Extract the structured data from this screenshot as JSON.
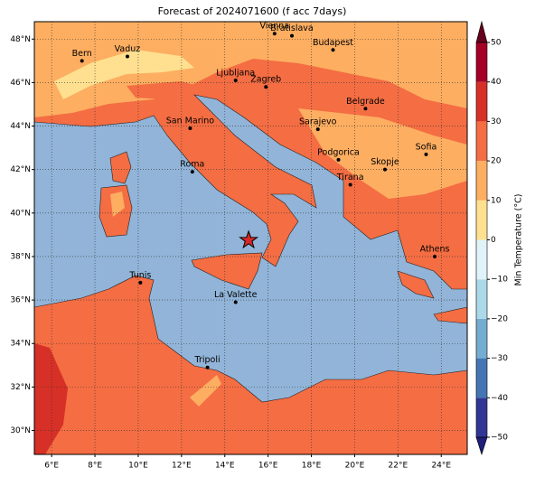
{
  "map": {
    "title": "Forecast of 2024071600 (f acc 7days)",
    "xlim": [
      5.2,
      25.2
    ],
    "ylim": [
      28.9,
      48.8
    ],
    "xticks": [
      {
        "value": 6,
        "label": "6°E"
      },
      {
        "value": 8,
        "label": "8°E"
      },
      {
        "value": 10,
        "label": "10°E"
      },
      {
        "value": 12,
        "label": "12°E"
      },
      {
        "value": 14,
        "label": "14°E"
      },
      {
        "value": 16,
        "label": "16°E"
      },
      {
        "value": 18,
        "label": "18°E"
      },
      {
        "value": 20,
        "label": "20°E"
      },
      {
        "value": 22,
        "label": "22°E"
      },
      {
        "value": 24,
        "label": "24°E"
      }
    ],
    "yticks": [
      {
        "value": 30,
        "label": "30°N"
      },
      {
        "value": 32,
        "label": "32°N"
      },
      {
        "value": 34,
        "label": "34°N"
      },
      {
        "value": 36,
        "label": "36°N"
      },
      {
        "value": 38,
        "label": "38°N"
      },
      {
        "value": 40,
        "label": "40°N"
      },
      {
        "value": 42,
        "label": "42°N"
      },
      {
        "value": 44,
        "label": "44°N"
      },
      {
        "value": 46,
        "label": "46°N"
      },
      {
        "value": 48,
        "label": "48°N"
      }
    ],
    "grid": true,
    "cities": [
      {
        "name": "Bern",
        "lon": 7.4,
        "lat": 47.0
      },
      {
        "name": "Vaduz",
        "lon": 9.5,
        "lat": 47.2
      },
      {
        "name": "Vienna",
        "lon": 16.3,
        "lat": 48.25
      },
      {
        "name": "Bratislava",
        "lon": 17.1,
        "lat": 48.15
      },
      {
        "name": "Budapest",
        "lon": 19.0,
        "lat": 47.5
      },
      {
        "name": "Ljubljana",
        "lon": 14.5,
        "lat": 46.1
      },
      {
        "name": "Zagreb",
        "lon": 15.9,
        "lat": 45.8
      },
      {
        "name": "San Marino",
        "lon": 12.4,
        "lat": 43.9
      },
      {
        "name": "Belgrade",
        "lon": 20.5,
        "lat": 44.8
      },
      {
        "name": "Sarajevo",
        "lon": 18.3,
        "lat": 43.85
      },
      {
        "name": "Podgorica",
        "lon": 19.25,
        "lat": 42.45
      },
      {
        "name": "Skopje",
        "lon": 21.4,
        "lat": 42.0
      },
      {
        "name": "Sofia",
        "lon": 23.3,
        "lat": 42.7
      },
      {
        "name": "Roma",
        "lon": 12.5,
        "lat": 41.9
      },
      {
        "name": "Tirana",
        "lon": 19.8,
        "lat": 41.3
      },
      {
        "name": "Athens",
        "lon": 23.7,
        "lat": 38.0
      },
      {
        "name": "Tunis",
        "lon": 10.1,
        "lat": 36.8
      },
      {
        "name": "La Valette",
        "lon": 14.5,
        "lat": 35.9
      },
      {
        "name": "Tripoli",
        "lon": 13.2,
        "lat": 32.9
      }
    ],
    "marker": {
      "lon": 15.1,
      "lat": 38.75,
      "color": "#d62728"
    },
    "colorbar": {
      "label": "Min Temperature (°C)",
      "levels": [
        -50,
        -40,
        -30,
        -20,
        -10,
        0,
        10,
        20,
        30,
        40,
        50
      ],
      "ticks": [
        {
          "value": -50,
          "label": "−50"
        },
        {
          "value": -40,
          "label": "−40"
        },
        {
          "value": -30,
          "label": "−30"
        },
        {
          "value": -20,
          "label": "−20"
        },
        {
          "value": -10,
          "label": "−10"
        },
        0,
        10,
        20,
        30,
        40,
        50
      ],
      "colors": [
        "#313695",
        "#4575b4",
        "#74add1",
        "#abd9e9",
        "#e0f3f8",
        "#fee090",
        "#fdae61",
        "#f46d43",
        "#d73027",
        "#a50026"
      ],
      "under_color": "#1f1f7a",
      "over_color": "#67001f"
    }
  }
}
